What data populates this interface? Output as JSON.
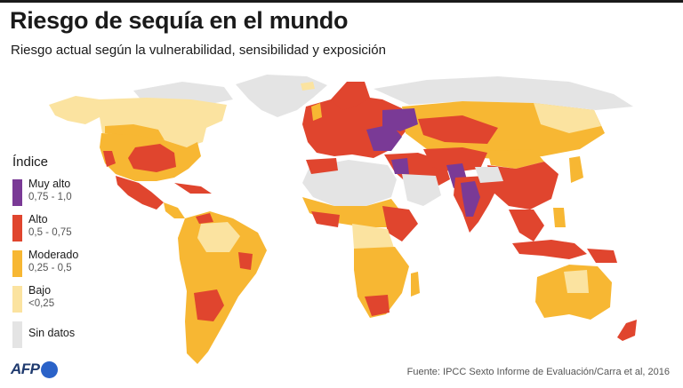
{
  "header": {
    "title": "Riesgo de sequía en el mundo",
    "subtitle": "Riesgo actual según la vulnerabilidad, sensibilidad y exposición"
  },
  "legend": {
    "title": "Índice",
    "items": [
      {
        "label": "Muy alto",
        "range": "0,75 - 1,0",
        "color": "#7a3a96"
      },
      {
        "label": "Alto",
        "range": "0,5 - 0,75",
        "color": "#e0452e"
      },
      {
        "label": "Moderado",
        "range": "0,25 - 0,5",
        "color": "#f7b733"
      },
      {
        "label": "Bajo",
        "range": "<0,25",
        "color": "#fbe3a0"
      },
      {
        "label": "Sin datos",
        "range": "",
        "color": "#e4e4e4"
      }
    ]
  },
  "footer": {
    "logo_text": "AFP",
    "source": "Fuente: IPCC Sexto Informe de Evaluación/Carra et al, 2016"
  }
}
